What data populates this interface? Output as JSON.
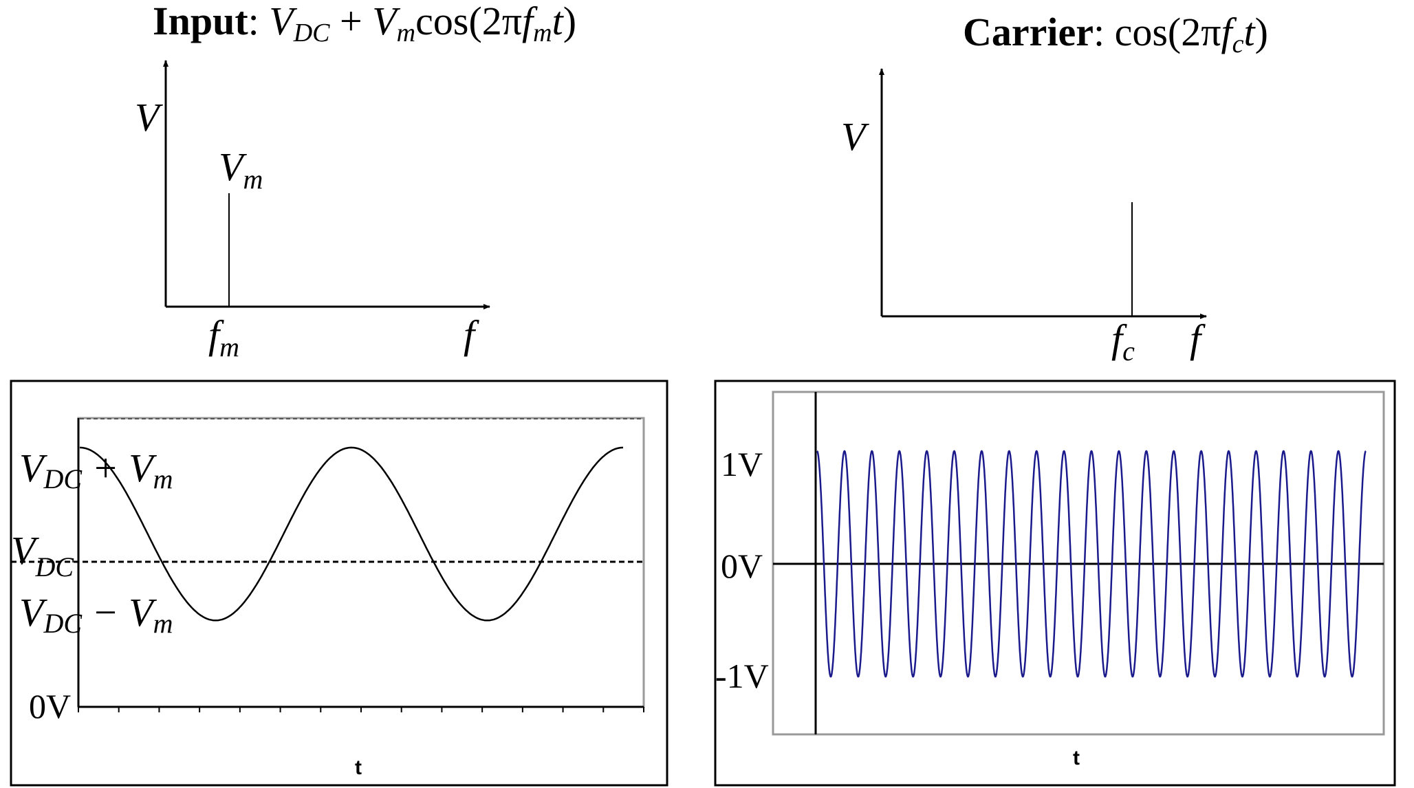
{
  "input_panel": {
    "title_bold": "Input",
    "title_colon": ":",
    "formula": {
      "v": "V",
      "dc": "DC",
      "plus": " + ",
      "v2": "V",
      "m": "m",
      "cos": "cos(2π",
      "f": "f",
      "m2": "m",
      "t": "t",
      "close": ")"
    },
    "spectrum": {
      "y_axis_label": "V",
      "x_axis_label": "f",
      "line_label_main": "V",
      "line_label_sub": "m",
      "freq_label_main": "f",
      "freq_label_sub": "m"
    },
    "time_plot": {
      "label_top_main": "V",
      "label_top_sub": "DC",
      "label_top_op": " + V",
      "label_top_sub2": "m",
      "label_mid_main": "V",
      "label_mid_sub": "DC",
      "label_bot_main": "V",
      "label_bot_sub": "DC",
      "label_bot_op": " − V",
      "label_bot_sub2": "m",
      "label_zero": "0V",
      "x_label": "t"
    }
  },
  "carrier_panel": {
    "title_bold": "Carrier",
    "title_colon": ":",
    "formula": {
      "cos": "cos(2π",
      "f": "f",
      "c": "c",
      "t": "t",
      "close": ")"
    },
    "spectrum": {
      "y_axis_label": "V",
      "x_axis_label": "f",
      "freq_label_main": "f",
      "freq_label_sub": "c"
    },
    "time_plot": {
      "label_pos": "1V",
      "label_zero": "0V",
      "label_neg": "-1V",
      "x_label": "t"
    }
  },
  "chart_data": [
    {
      "type": "line",
      "name": "input-time-signal",
      "function": "VDC + Vm*cos(2*pi*fm*t)",
      "cycles": 2,
      "levels": {
        "VDC": 0.6,
        "Vm": 0.3,
        "top_dashed": 1.0
      },
      "ylim": [
        0,
        1.0
      ],
      "x_ticks": 14,
      "color": "#000000"
    },
    {
      "type": "line",
      "name": "carrier-time-signal",
      "function": "cos(2*pi*fc*t)",
      "cycles": 20,
      "amplitude": 1,
      "ylim": [
        -1.5,
        1.5
      ],
      "color": "#1a1a8c"
    }
  ]
}
